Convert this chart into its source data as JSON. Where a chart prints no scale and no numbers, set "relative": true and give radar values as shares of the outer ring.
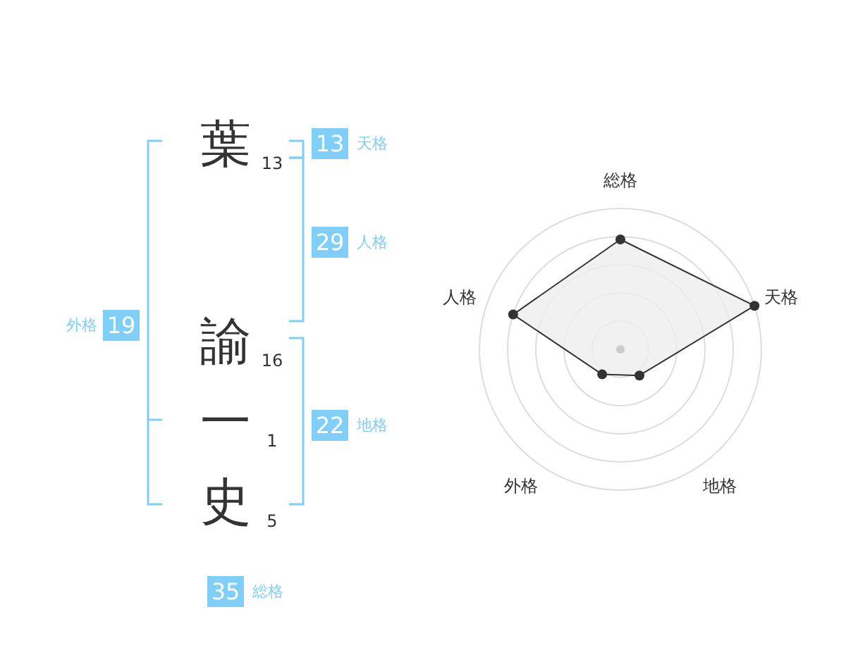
{
  "chart_data": [
    {
      "type": "other",
      "annotations": [
        "葉",
        "13",
        "諭",
        "16",
        "一",
        "1",
        "史",
        "5",
        "13",
        "天格",
        "29",
        "人格",
        "22",
        "地格",
        "19",
        "外格",
        "35",
        "総格"
      ]
    },
    {
      "type": "radar",
      "relative": true,
      "categories": [
        "総格",
        "天格",
        "地格",
        "外格",
        "人格"
      ],
      "marker": "circle",
      "series": [
        {
          "color": "#333333",
          "values": [
            0.78,
            1.0,
            0.23,
            0.22,
            0.8
          ]
        }
      ]
    }
  ]
}
